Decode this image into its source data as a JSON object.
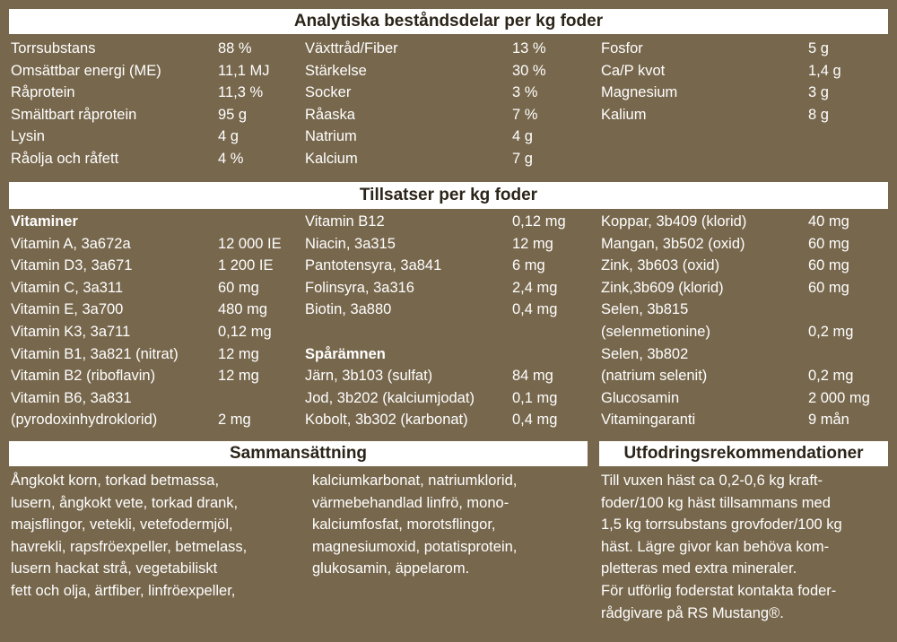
{
  "sections": [
    {
      "title": "Analytiska beståndsdelar per kg foder",
      "columns": [
        [
          {
            "items": [
              {
                "label": [
                  "Torrsubstans"
                ],
                "value": "88 %"
              },
              {
                "label": [
                  "Omsättbar energi (ME)"
                ],
                "value": "11,1 MJ"
              },
              {
                "label": [
                  "Råprotein"
                ],
                "value": "11,3 %"
              },
              {
                "label": [
                  "Smältbart råprotein"
                ],
                "value": "95 g"
              },
              {
                "label": [
                  "Lysin"
                ],
                "value": "4 g"
              },
              {
                "label": [
                  "Råolja och råfett"
                ],
                "value": "4 %"
              }
            ]
          }
        ],
        [
          {
            "items": [
              {
                "label": [
                  "Växttråd/Fiber"
                ],
                "value": "13 %"
              },
              {
                "label": [
                  "Stärkelse"
                ],
                "value": "30 %"
              },
              {
                "label": [
                  "Socker"
                ],
                "value": "3 %"
              },
              {
                "label": [
                  "Råaska"
                ],
                "value": "7 %"
              },
              {
                "label": [
                  "Natrium"
                ],
                "value": "4 g"
              },
              {
                "label": [
                  "Kalcium"
                ],
                "value": "7 g"
              }
            ]
          }
        ],
        [
          {
            "items": [
              {
                "label": [
                  "Fosfor"
                ],
                "value": "5 g"
              },
              {
                "label": [
                  "Ca/P kvot"
                ],
                "value": "1,4 g"
              },
              {
                "label": [
                  "Magnesium"
                ],
                "value": "3 g"
              },
              {
                "label": [
                  "Kalium"
                ],
                "value": "8 g"
              }
            ]
          }
        ]
      ]
    },
    {
      "title": "Tillsatser per kg foder",
      "columns": [
        [
          {
            "heading": "Vitaminer",
            "items": [
              {
                "label": [
                  "Vitamin A, 3a672a"
                ],
                "value": "12 000 IE"
              },
              {
                "label": [
                  "Vitamin D3, 3a671"
                ],
                "value": "1 200 IE"
              },
              {
                "label": [
                  "Vitamin C, 3a311"
                ],
                "value": "60 mg"
              },
              {
                "label": [
                  "Vitamin E, 3a700"
                ],
                "value": "480 mg"
              },
              {
                "label": [
                  "Vitamin K3, 3a711"
                ],
                "value": "0,12 mg"
              },
              {
                "label": [
                  "Vitamin B1, 3a821 (nitrat)"
                ],
                "value": "12 mg"
              },
              {
                "label": [
                  "Vitamin B2 (riboflavin)"
                ],
                "value": "12 mg"
              },
              {
                "label": [
                  "Vitamin B6, 3a831",
                  "(pyrodoxinhydroklorid)"
                ],
                "value": "2 mg"
              }
            ]
          }
        ],
        [
          {
            "items": [
              {
                "label": [
                  "Vitamin B12"
                ],
                "value": "0,12 mg"
              },
              {
                "label": [
                  "Niacin, 3a315"
                ],
                "value": "12 mg"
              },
              {
                "label": [
                  "Pantotensyra, 3a841"
                ],
                "value": "6 mg"
              },
              {
                "label": [
                  "Folinsyra, 3a316"
                ],
                "value": "2,4 mg"
              },
              {
                "label": [
                  "Biotin, 3a880"
                ],
                "value": "0,4 mg"
              }
            ]
          },
          {
            "heading": "Spårämnen",
            "items": [
              {
                "label": [
                  "Järn, 3b103 (sulfat)"
                ],
                "value": "84 mg"
              },
              {
                "label": [
                  "Jod, 3b202 (kalciumjodat)"
                ],
                "value": "0,1 mg"
              },
              {
                "label": [
                  "Kobolt, 3b302 (karbonat)"
                ],
                "value": "0,4 mg"
              }
            ]
          }
        ],
        [
          {
            "items": [
              {
                "label": [
                  "Koppar, 3b409 (klorid)"
                ],
                "value": "40 mg"
              },
              {
                "label": [
                  "Mangan, 3b502 (oxid)"
                ],
                "value": "60 mg"
              },
              {
                "label": [
                  "Zink, 3b603 (oxid)"
                ],
                "value": "60 mg"
              },
              {
                "label": [
                  "Zink,3b609 (klorid)"
                ],
                "value": "60 mg"
              },
              {
                "label": [
                  "Selen, 3b815",
                  "(selenmetionine)"
                ],
                "value": "0,2 mg"
              },
              {
                "label": [
                  "Selen, 3b802",
                  "(natrium selenit)"
                ],
                "value": "0,2 mg"
              },
              {
                "label": [
                  "Glucosamin"
                ],
                "value": "2 000 mg"
              },
              {
                "label": [
                  "Vitamingaranti"
                ],
                "value": "9 mån"
              }
            ]
          }
        ]
      ]
    }
  ],
  "composition": {
    "title": "Sammansättning",
    "columns": [
      [
        "Ångkokt korn, torkad betmassa,",
        "lusern, ångkokt vete, torkad drank,",
        "majsflingor, vetekli, vetefodermjöl,",
        "havrekli, rapsfröexpeller, betmelass,",
        "lusern hackat strå, vegetabiliskt",
        "fett och olja, ärtfiber, linfröexpeller,"
      ],
      [
        "kalciumkarbonat, natriumklorid,",
        "värmebehandlad linfrö, mono-",
        "kalciumfosfat, morotsflingor,",
        "magnesiumoxid, potatisprotein,",
        "glukosamin, äppelarom."
      ]
    ]
  },
  "recommendation": {
    "title": "Utfodringsrekommendationer",
    "lines": [
      "Till vuxen häst ca 0,2-0,6 kg kraft-",
      "foder/100 kg häst tillsammans med",
      "1,5 kg torrsubstans grovfoder/100 kg",
      "häst. Lägre givor kan behöva kom-",
      "pletteras med extra mineraler.",
      "För utförlig foderstat kontakta foder-",
      "rådgivare på RS Mustang®."
    ]
  }
}
